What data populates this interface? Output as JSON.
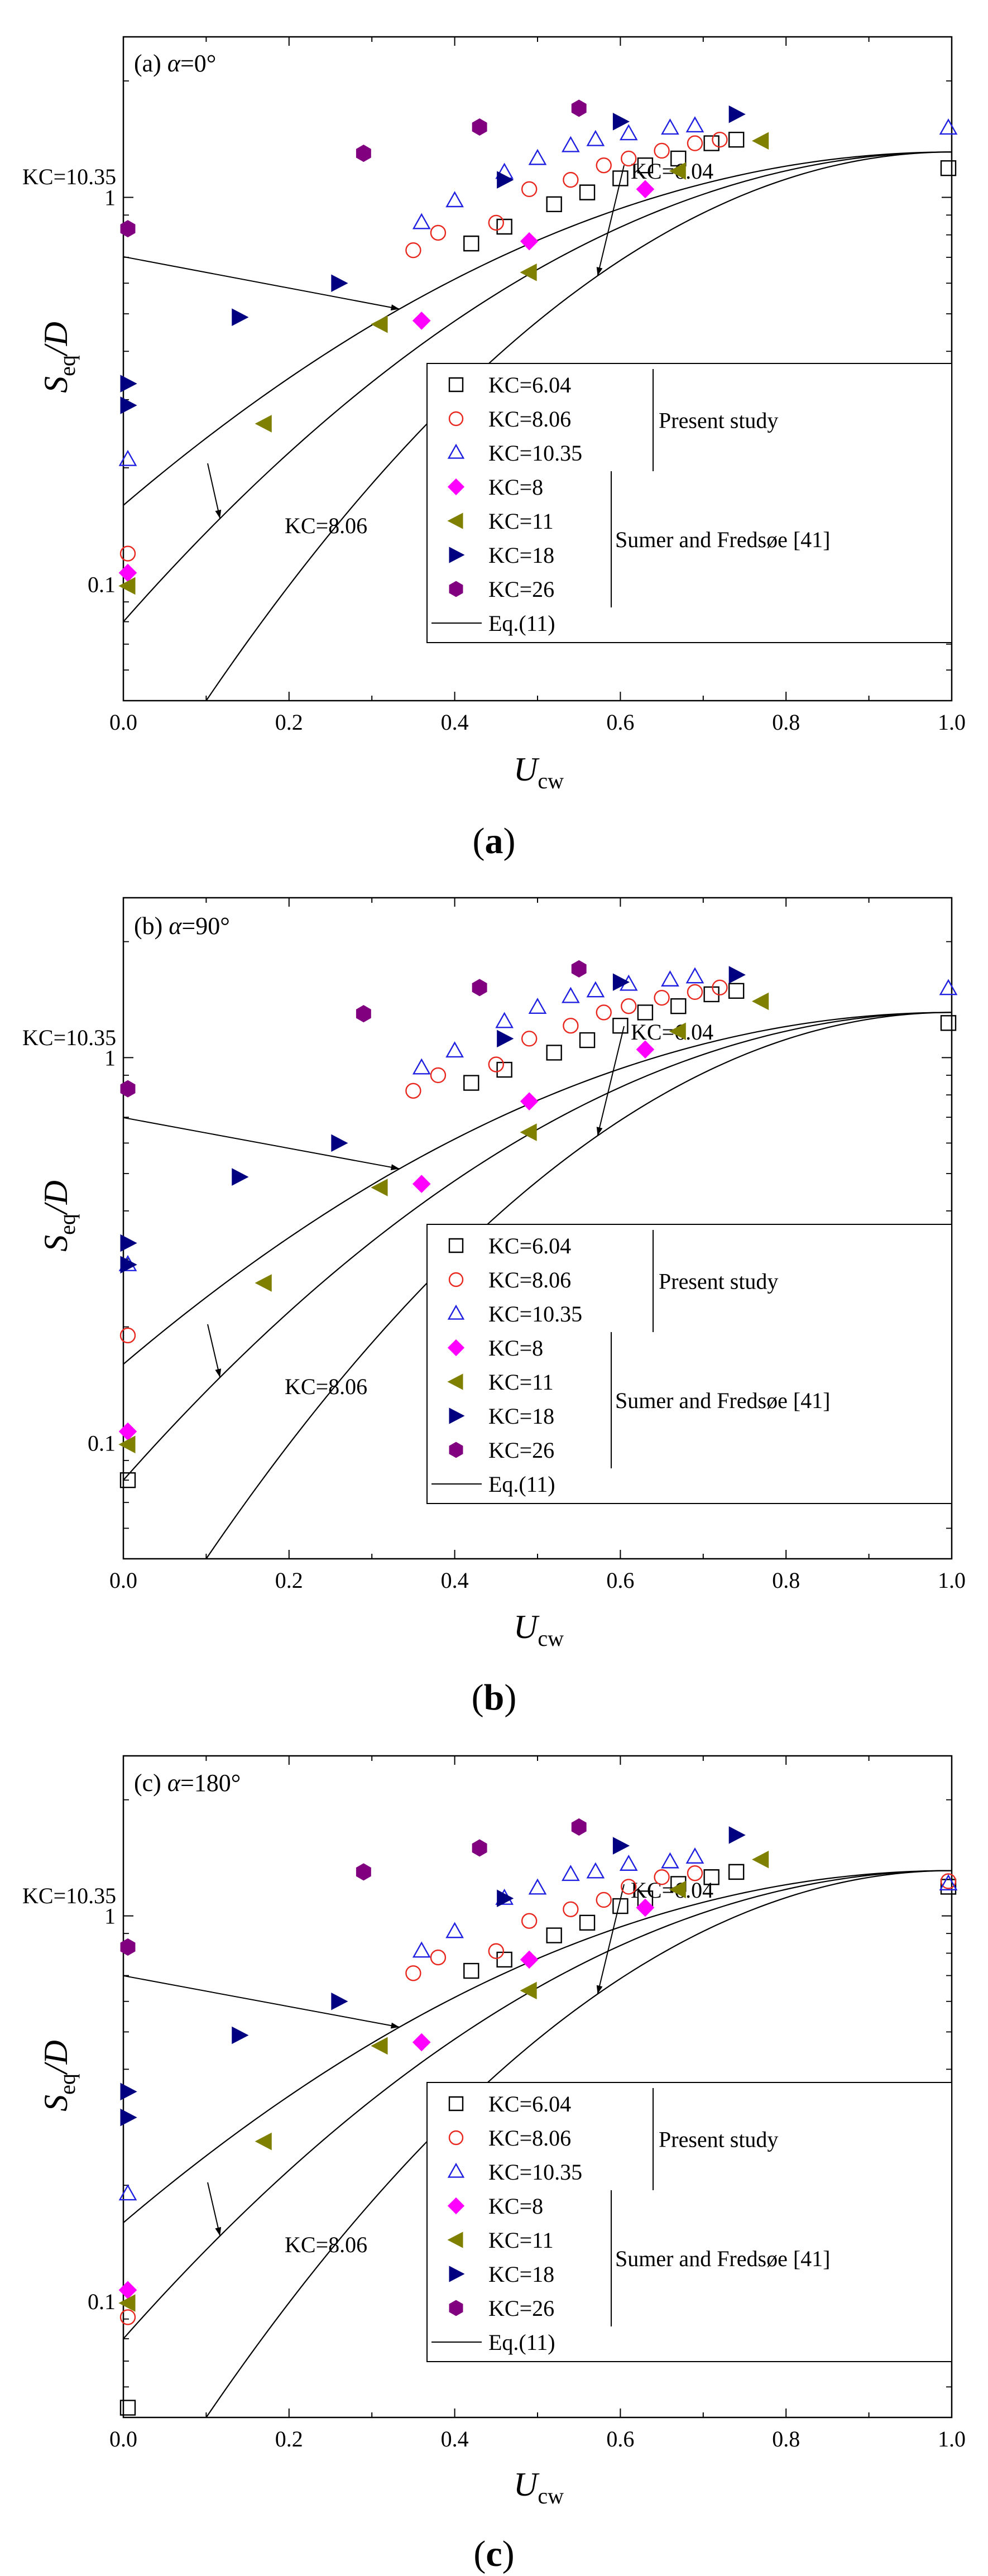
{
  "chart_data": [
    {
      "type": "scatter",
      "panel_label": "(a)",
      "title_prefix": "(a) ",
      "alpha_symbol": "α",
      "title_suffix": "=0°",
      "caption": "a",
      "xlabel": "U",
      "xlabel_sub": "cw",
      "ylabel": "S",
      "ylabel_sub": "eq",
      "ylabel_suffix": "/D",
      "xlim": [
        0,
        1
      ],
      "ylim": [
        0.05,
        2.6
      ],
      "yscale": "log",
      "x_ticks": [
        "0.0",
        "0.2",
        "0.4",
        "0.6",
        "0.8",
        "1.0"
      ],
      "y_ticks": [
        "0.1",
        "1"
      ],
      "curve_labels": [
        {
          "text": "KC=10.35",
          "curve": "KC=10.35"
        },
        {
          "text": "KC=6.04",
          "curve": "KC=6.04"
        },
        {
          "text": "KC=8.06",
          "curve": "KC=8.06"
        }
      ],
      "legend": {
        "entries": [
          "KC=6.04",
          "KC=8.06",
          "KC=10.35",
          "KC=8",
          "KC=11",
          "KC=18",
          "KC=26",
          "Eq.(11)"
        ],
        "group_present": "Present study",
        "group_sumer": "Sumer and Fredsøe [41]"
      },
      "series": [
        {
          "name": "KC=6.04",
          "marker": "square-open",
          "color": "#000000",
          "points": [
            [
              0.42,
              0.76
            ],
            [
              0.46,
              0.84
            ],
            [
              0.52,
              0.96
            ],
            [
              0.56,
              1.03
            ],
            [
              0.6,
              1.12
            ],
            [
              0.63,
              1.21
            ],
            [
              0.67,
              1.26
            ],
            [
              0.71,
              1.38
            ],
            [
              0.74,
              1.41
            ],
            [
              1.0,
              1.19
            ]
          ]
        },
        {
          "name": "KC=8.06",
          "marker": "circle-open",
          "color": "#e8271e",
          "points": [
            [
              0.0,
              0.12
            ],
            [
              0.35,
              0.73
            ],
            [
              0.38,
              0.81
            ],
            [
              0.45,
              0.86
            ],
            [
              0.49,
              1.05
            ],
            [
              0.54,
              1.11
            ],
            [
              0.58,
              1.21
            ],
            [
              0.61,
              1.26
            ],
            [
              0.65,
              1.32
            ],
            [
              0.69,
              1.38
            ],
            [
              0.72,
              1.41
            ]
          ]
        },
        {
          "name": "KC=10.35",
          "marker": "triangle-open",
          "color": "#2020e0",
          "points": [
            [
              0.0,
              0.21
            ],
            [
              0.36,
              0.86
            ],
            [
              0.4,
              0.98
            ],
            [
              0.46,
              1.16
            ],
            [
              0.5,
              1.26
            ],
            [
              0.54,
              1.36
            ],
            [
              0.57,
              1.41
            ],
            [
              0.61,
              1.46
            ],
            [
              0.66,
              1.51
            ],
            [
              0.69,
              1.53
            ],
            [
              1.0,
              1.51
            ]
          ]
        },
        {
          "name": "KC=8",
          "marker": "diamond-filled",
          "color": "#ff00ff",
          "points": [
            [
              0.0,
              0.107
            ],
            [
              0.36,
              0.48
            ],
            [
              0.49,
              0.77
            ],
            [
              0.63,
              1.05
            ]
          ]
        },
        {
          "name": "KC=11",
          "marker": "triangle-left-filled",
          "color": "#808000",
          "points": [
            [
              0.0,
              0.099
            ],
            [
              0.17,
              0.26
            ],
            [
              0.31,
              0.47
            ],
            [
              0.49,
              0.64
            ],
            [
              0.67,
              1.17
            ],
            [
              0.77,
              1.4
            ]
          ]
        },
        {
          "name": "KC=18",
          "marker": "triangle-right-filled",
          "color": "#000080",
          "points": [
            [
              0.0,
              0.33
            ],
            [
              0.0,
              0.29
            ],
            [
              0.14,
              0.49
            ],
            [
              0.26,
              0.6
            ],
            [
              0.46,
              1.11
            ],
            [
              0.6,
              1.57
            ],
            [
              0.74,
              1.64
            ]
          ]
        },
        {
          "name": "KC=26",
          "marker": "hexagon-filled",
          "color": "#800080",
          "points": [
            [
              0.0,
              0.83
            ],
            [
              0.29,
              1.3
            ],
            [
              0.43,
              1.52
            ],
            [
              0.55,
              1.7
            ]
          ]
        }
      ],
      "curves": [
        {
          "name": "KC=10.35",
          "x_range": [
            0,
            1
          ],
          "y_start": 0.16,
          "y_end": 1.31
        },
        {
          "name": "KC=8.06",
          "x_range": [
            0,
            1
          ],
          "y_start": 0.08,
          "y_end": 1.31
        },
        {
          "name": "KC=6.04",
          "x_range": [
            0.1,
            1
          ],
          "y_start": 0.05,
          "y_end": 1.31
        }
      ]
    },
    {
      "type": "scatter",
      "panel_label": "(b)",
      "title_prefix": "(b) ",
      "alpha_symbol": "α",
      "title_suffix": "=90°",
      "caption": "b",
      "xlabel": "U",
      "xlabel_sub": "cw",
      "ylabel": "S",
      "ylabel_sub": "eq",
      "ylabel_suffix": "/D",
      "xlim": [
        0,
        1
      ],
      "ylim": [
        0.05,
        2.6
      ],
      "yscale": "log",
      "x_ticks": [
        "0.0",
        "0.2",
        "0.4",
        "0.6",
        "0.8",
        "1.0"
      ],
      "y_ticks": [
        "0.1",
        "1"
      ],
      "curve_labels": [
        {
          "text": "KC=10.35",
          "curve": "KC=10.35"
        },
        {
          "text": "KC=6.04",
          "curve": "KC=6.04"
        },
        {
          "text": "KC=8.06",
          "curve": "KC=8.06"
        }
      ],
      "legend": {
        "entries": [
          "KC=6.04",
          "KC=8.06",
          "KC=10.35",
          "KC=8",
          "KC=11",
          "KC=18",
          "KC=26",
          "Eq.(11)"
        ],
        "group_present": "Present study",
        "group_sumer": "Sumer and Fredsøe [41]"
      },
      "series": [
        {
          "name": "KC=6.04",
          "marker": "square-open",
          "color": "#000000",
          "points": [
            [
              0.0,
              0.08
            ],
            [
              0.42,
              0.86
            ],
            [
              0.46,
              0.93
            ],
            [
              0.52,
              1.03
            ],
            [
              0.56,
              1.11
            ],
            [
              0.6,
              1.21
            ],
            [
              0.63,
              1.31
            ],
            [
              0.67,
              1.36
            ],
            [
              0.71,
              1.46
            ],
            [
              0.74,
              1.49
            ],
            [
              1.0,
              1.23
            ]
          ]
        },
        {
          "name": "KC=8.06",
          "marker": "circle-open",
          "color": "#e8271e",
          "points": [
            [
              0.0,
              0.19
            ],
            [
              0.35,
              0.82
            ],
            [
              0.38,
              0.9
            ],
            [
              0.45,
              0.96
            ],
            [
              0.49,
              1.12
            ],
            [
              0.54,
              1.21
            ],
            [
              0.58,
              1.31
            ],
            [
              0.61,
              1.36
            ],
            [
              0.65,
              1.43
            ],
            [
              0.69,
              1.48
            ],
            [
              0.72,
              1.52
            ]
          ]
        },
        {
          "name": "KC=10.35",
          "marker": "triangle-open",
          "color": "#2020e0",
          "points": [
            [
              0.0,
              0.29
            ],
            [
              0.36,
              0.94
            ],
            [
              0.4,
              1.04
            ],
            [
              0.46,
              1.24
            ],
            [
              0.5,
              1.35
            ],
            [
              0.54,
              1.44
            ],
            [
              0.57,
              1.49
            ],
            [
              0.61,
              1.55
            ],
            [
              0.66,
              1.59
            ],
            [
              0.69,
              1.62
            ],
            [
              1.0,
              1.51
            ]
          ]
        },
        {
          "name": "KC=8",
          "marker": "diamond-filled",
          "color": "#ff00ff",
          "points": [
            [
              0.0,
              0.107
            ],
            [
              0.36,
              0.47
            ],
            [
              0.49,
              0.77
            ],
            [
              0.63,
              1.05
            ]
          ]
        },
        {
          "name": "KC=11",
          "marker": "triangle-left-filled",
          "color": "#808000",
          "points": [
            [
              0.0,
              0.099
            ],
            [
              0.17,
              0.26
            ],
            [
              0.31,
              0.46
            ],
            [
              0.49,
              0.64
            ],
            [
              0.67,
              1.17
            ],
            [
              0.77,
              1.4
            ]
          ]
        },
        {
          "name": "KC=18",
          "marker": "triangle-right-filled",
          "color": "#000080",
          "points": [
            [
              0.0,
              0.33
            ],
            [
              0.0,
              0.29
            ],
            [
              0.14,
              0.49
            ],
            [
              0.26,
              0.6
            ],
            [
              0.46,
              1.12
            ],
            [
              0.6,
              1.57
            ],
            [
              0.74,
              1.64
            ]
          ]
        },
        {
          "name": "KC=26",
          "marker": "hexagon-filled",
          "color": "#800080",
          "points": [
            [
              0.0,
              0.83
            ],
            [
              0.29,
              1.3
            ],
            [
              0.43,
              1.52
            ],
            [
              0.55,
              1.7
            ]
          ]
        }
      ],
      "curves": [
        {
          "name": "KC=10.35",
          "x_range": [
            0,
            1
          ],
          "y_start": 0.16,
          "y_end": 1.31
        },
        {
          "name": "KC=8.06",
          "x_range": [
            0,
            1
          ],
          "y_start": 0.08,
          "y_end": 1.31
        },
        {
          "name": "KC=6.04",
          "x_range": [
            0.1,
            1
          ],
          "y_start": 0.05,
          "y_end": 1.31
        }
      ]
    },
    {
      "type": "scatter",
      "panel_label": "(c)",
      "title_prefix": "(c) ",
      "alpha_symbol": "α",
      "title_suffix": "=180°",
      "caption": "c",
      "xlabel": "U",
      "xlabel_sub": "cw",
      "ylabel": "S",
      "ylabel_sub": "eq",
      "ylabel_suffix": "/D",
      "xlim": [
        0,
        1
      ],
      "ylim": [
        0.05,
        2.6
      ],
      "yscale": "log",
      "x_ticks": [
        "0.0",
        "0.2",
        "0.4",
        "0.6",
        "0.8",
        "1.0"
      ],
      "y_ticks": [
        "0.1",
        "1"
      ],
      "curve_labels": [
        {
          "text": "KC=10.35",
          "curve": "KC=10.35"
        },
        {
          "text": "KC=6.04",
          "curve": "KC=6.04"
        },
        {
          "text": "KC=8.06",
          "curve": "KC=8.06"
        }
      ],
      "legend": {
        "entries": [
          "KC=6.04",
          "KC=8.06",
          "KC=10.35",
          "KC=8",
          "KC=11",
          "KC=18",
          "KC=26",
          "Eq.(11)"
        ],
        "group_present": "Present study",
        "group_sumer": "Sumer and Fredsøe [41]"
      },
      "series": [
        {
          "name": "KC=6.04",
          "marker": "square-open",
          "color": "#000000",
          "points": [
            [
              0.0,
              0.053
            ],
            [
              0.42,
              0.72
            ],
            [
              0.46,
              0.77
            ],
            [
              0.52,
              0.89
            ],
            [
              0.56,
              0.96
            ],
            [
              0.6,
              1.06
            ],
            [
              0.63,
              1.11
            ],
            [
              0.67,
              1.21
            ],
            [
              0.71,
              1.26
            ],
            [
              0.74,
              1.3
            ],
            [
              1.0,
              1.19
            ]
          ]
        },
        {
          "name": "KC=8.06",
          "marker": "circle-open",
          "color": "#e8271e",
          "points": [
            [
              0.0,
              0.091
            ],
            [
              0.35,
              0.71
            ],
            [
              0.38,
              0.78
            ],
            [
              0.45,
              0.81
            ],
            [
              0.49,
              0.97
            ],
            [
              0.54,
              1.04
            ],
            [
              0.58,
              1.1
            ],
            [
              0.61,
              1.19
            ],
            [
              0.65,
              1.26
            ],
            [
              0.69,
              1.29
            ],
            [
              1.0,
              1.23
            ]
          ]
        },
        {
          "name": "KC=10.35",
          "marker": "triangle-open",
          "color": "#2020e0",
          "points": [
            [
              0.0,
              0.19
            ],
            [
              0.36,
              0.81
            ],
            [
              0.4,
              0.91
            ],
            [
              0.46,
              1.11
            ],
            [
              0.5,
              1.18
            ],
            [
              0.54,
              1.28
            ],
            [
              0.57,
              1.3
            ],
            [
              0.61,
              1.36
            ],
            [
              0.66,
              1.38
            ],
            [
              0.69,
              1.42
            ],
            [
              1.0,
              1.21
            ]
          ]
        },
        {
          "name": "KC=8",
          "marker": "diamond-filled",
          "color": "#ff00ff",
          "points": [
            [
              0.0,
              0.107
            ],
            [
              0.36,
              0.47
            ],
            [
              0.49,
              0.77
            ],
            [
              0.63,
              1.05
            ]
          ]
        },
        {
          "name": "KC=11",
          "marker": "triangle-left-filled",
          "color": "#808000",
          "points": [
            [
              0.0,
              0.099
            ],
            [
              0.17,
              0.26
            ],
            [
              0.31,
              0.46
            ],
            [
              0.49,
              0.64
            ],
            [
              0.67,
              1.17
            ],
            [
              0.77,
              1.4
            ]
          ]
        },
        {
          "name": "KC=18",
          "marker": "triangle-right-filled",
          "color": "#000080",
          "points": [
            [
              0.0,
              0.35
            ],
            [
              0.0,
              0.3
            ],
            [
              0.14,
              0.49
            ],
            [
              0.26,
              0.6
            ],
            [
              0.46,
              1.11
            ],
            [
              0.6,
              1.52
            ],
            [
              0.74,
              1.62
            ]
          ]
        },
        {
          "name": "KC=26",
          "marker": "hexagon-filled",
          "color": "#800080",
          "points": [
            [
              0.0,
              0.83
            ],
            [
              0.29,
              1.3
            ],
            [
              0.43,
              1.5
            ],
            [
              0.55,
              1.7
            ]
          ]
        }
      ],
      "curves": [
        {
          "name": "KC=10.35",
          "x_range": [
            0,
            1
          ],
          "y_start": 0.16,
          "y_end": 1.31
        },
        {
          "name": "KC=8.06",
          "x_range": [
            0,
            1
          ],
          "y_start": 0.08,
          "y_end": 1.31
        },
        {
          "name": "KC=6.04",
          "x_range": [
            0.1,
            1
          ],
          "y_start": 0.05,
          "y_end": 1.31
        }
      ]
    }
  ]
}
